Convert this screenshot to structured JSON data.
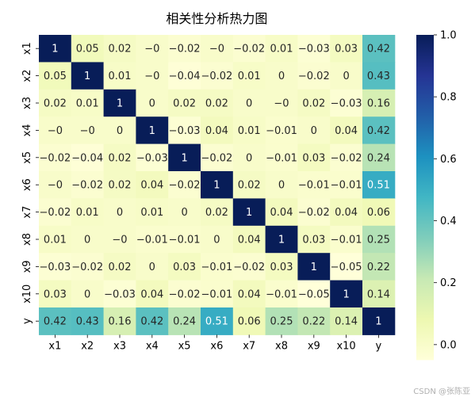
{
  "chart_data": {
    "type": "heatmap",
    "title": "相关性分析热力图",
    "xlabels": [
      "x1",
      "x2",
      "x3",
      "x4",
      "x5",
      "x6",
      "x7",
      "x8",
      "x9",
      "x10",
      "y"
    ],
    "ylabels": [
      "x1",
      "x2",
      "x3",
      "x4",
      "x5",
      "x6",
      "x7",
      "x8",
      "x9",
      "x10",
      "y"
    ],
    "values": [
      [
        1,
        0.05,
        0.02,
        0,
        -0.02,
        0,
        -0.02,
        0.01,
        -0.03,
        0.03,
        0.42
      ],
      [
        0.05,
        1,
        0.01,
        0,
        -0.04,
        -0.02,
        0.01,
        0,
        -0.02,
        0,
        0.43
      ],
      [
        0.02,
        0.01,
        1,
        0,
        0.02,
        0.02,
        0,
        0,
        0.02,
        -0.03,
        0.16
      ],
      [
        0,
        0,
        0,
        1,
        -0.03,
        0.04,
        0.01,
        -0.01,
        0,
        0.04,
        0.42
      ],
      [
        -0.02,
        -0.04,
        0.02,
        -0.03,
        1,
        -0.02,
        0,
        -0.01,
        0.03,
        -0.02,
        0.24
      ],
      [
        0,
        -0.02,
        0.02,
        0.04,
        -0.02,
        1,
        0.02,
        0,
        -0.01,
        -0.01,
        0.51
      ],
      [
        -0.02,
        0.01,
        0,
        0.01,
        0,
        0.02,
        1,
        0.04,
        -0.02,
        0.04,
        0.06
      ],
      [
        0.01,
        0,
        0,
        -0.01,
        -0.01,
        0,
        0.04,
        1,
        0.03,
        -0.01,
        0.25
      ],
      [
        -0.03,
        -0.02,
        0.02,
        0,
        0.03,
        -0.01,
        -0.02,
        0.03,
        1,
        -0.05,
        0.22
      ],
      [
        0.03,
        0,
        -0.03,
        0.04,
        -0.02,
        -0.01,
        0.04,
        -0.01,
        -0.05,
        1,
        0.14
      ],
      [
        0.42,
        0.43,
        0.16,
        0.42,
        0.24,
        0.51,
        0.06,
        0.25,
        0.22,
        0.14,
        1
      ]
    ],
    "colormap": "YlGnBu",
    "colorbar": {
      "ticks": [
        "0.0",
        "0.2",
        "0.4",
        "0.6",
        "0.8",
        "1.0"
      ],
      "range": [
        -0.05,
        1.0
      ]
    },
    "colors": [
      "#ffffd9",
      "#edf8b1",
      "#c7e9b4",
      "#7fcdbb",
      "#41b6c4",
      "#1d91c0",
      "#225ea8",
      "#253494",
      "#081d58"
    ]
  },
  "watermark": "CSDN @张陈亚"
}
